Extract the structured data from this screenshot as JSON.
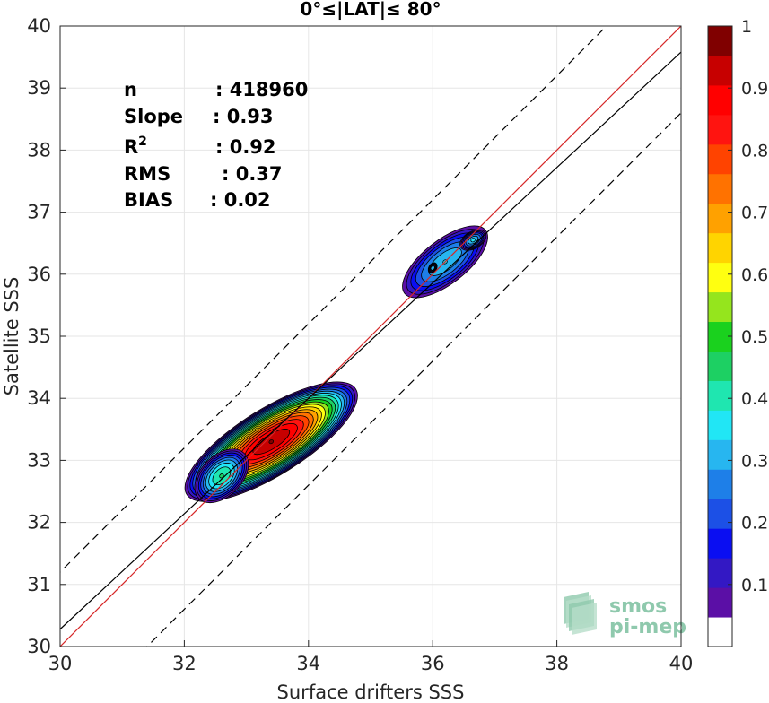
{
  "chart_data": {
    "type": "contourf",
    "title": "0°≤|LAT|≤ 80°",
    "xlabel": "Surface drifters SSS",
    "ylabel": "Satellite SSS",
    "xlim": [
      30,
      40
    ],
    "ylim": [
      30,
      40
    ],
    "xticks": [
      "30",
      "32",
      "34",
      "36",
      "38",
      "40"
    ],
    "yticks": [
      "30",
      "31",
      "32",
      "33",
      "34",
      "35",
      "36",
      "37",
      "38",
      "39",
      "40"
    ],
    "grid": true,
    "stats": [
      {
        "label": "n",
        "value": ": 418960"
      },
      {
        "label": "Slope",
        "value": ": 0.93"
      },
      {
        "label": "R",
        "sup": "2",
        "value": ": 0.92"
      },
      {
        "label": "RMS",
        "value": ": 0.37"
      },
      {
        "label": "BIAS",
        "value": ": 0.02"
      }
    ],
    "lines": [
      {
        "kind": "one-to-one",
        "color": "#d62728",
        "style": "solid",
        "x": [
          30,
          40
        ],
        "y": [
          30,
          40
        ]
      },
      {
        "kind": "regression",
        "color": "#000000",
        "style": "solid",
        "x": [
          30,
          40
        ],
        "y": [
          30.28,
          39.58
        ]
      },
      {
        "kind": "upper-bound",
        "color": "#000000",
        "style": "dashed",
        "x": [
          29.3,
          40
        ],
        "y": [
          30.5,
          41.2
        ]
      },
      {
        "kind": "lower-bound",
        "color": "#000000",
        "style": "dashed",
        "x": [
          30.7,
          40
        ],
        "y": [
          29.3,
          38.6
        ]
      }
    ],
    "density_clusters": [
      {
        "cx": 33.4,
        "cy": 33.3,
        "angle_deg": 32,
        "a": 1.65,
        "b": 0.55,
        "peak": 1.0
      },
      {
        "cx": 32.6,
        "cy": 32.75,
        "angle_deg": 45,
        "a": 0.55,
        "b": 0.35,
        "peak": 0.45
      },
      {
        "cx": 36.2,
        "cy": 36.2,
        "angle_deg": 38,
        "a": 0.9,
        "b": 0.38,
        "peak": 0.35
      },
      {
        "cx": 36.65,
        "cy": 36.55,
        "angle_deg": 30,
        "a": 0.25,
        "b": 0.15,
        "peak": 0.35
      },
      {
        "cx": 36.0,
        "cy": 36.1,
        "angle_deg": 60,
        "a": 0.1,
        "b": 0.07,
        "peak": 0.33
      }
    ],
    "colorbar": {
      "range": [
        0,
        1
      ],
      "ticks": [
        "0.1",
        "0.2",
        "0.3",
        "0.4",
        "0.5",
        "0.6",
        "0.7",
        "0.8",
        "0.9",
        "1"
      ],
      "colors": [
        "#ffffff",
        "#5b0fa6",
        "#3318c4",
        "#0a0ef2",
        "#1c50e6",
        "#1e7fe8",
        "#27b6f0",
        "#21e6f5",
        "#1fe6b0",
        "#1dd063",
        "#1ad11e",
        "#95e51d",
        "#ffff10",
        "#ffd400",
        "#ffa100",
        "#ff7200",
        "#ff4300",
        "#ff1410",
        "#ff0000",
        "#c70000",
        "#800000"
      ]
    },
    "watermark": {
      "line1": "smos",
      "line2": "pi-mep"
    }
  }
}
